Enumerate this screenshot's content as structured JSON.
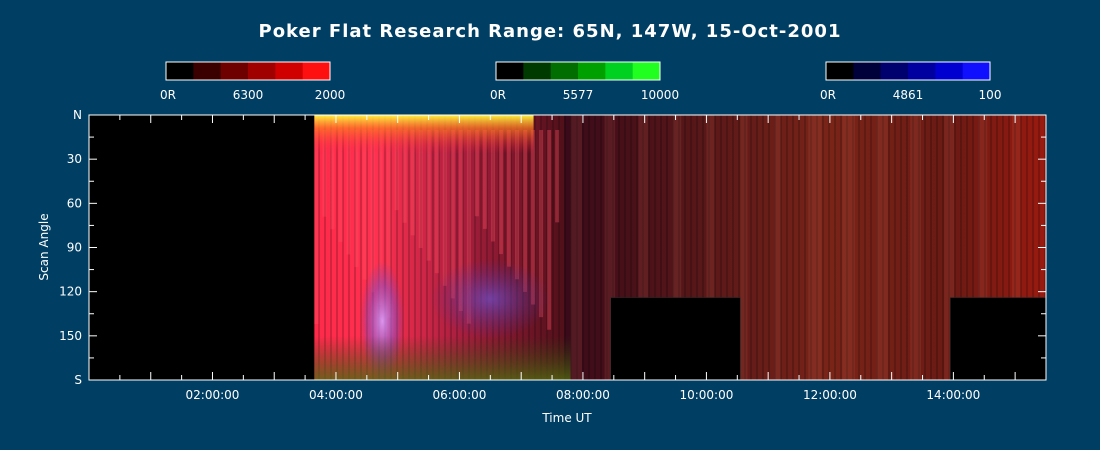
{
  "chart_data": {
    "type": "heatmap",
    "title": "Poker Flat Research Range: 65N, 147W, 15-Oct-2001",
    "xlabel": "Time UT",
    "ylabel": "Scan Angle",
    "xlim": [
      0.0,
      15.5
    ],
    "ylim": [
      0,
      180
    ],
    "x_ticks": [
      {
        "value": 2,
        "label": "02:00:00"
      },
      {
        "value": 4,
        "label": "04:00:00"
      },
      {
        "value": 6,
        "label": "06:00:00"
      },
      {
        "value": 8,
        "label": "08:00:00"
      },
      {
        "value": 10,
        "label": "10:00:00"
      },
      {
        "value": 12,
        "label": "12:00:00"
      },
      {
        "value": 14,
        "label": "14:00:00"
      }
    ],
    "y_ticks": [
      {
        "value": 0,
        "label": "N"
      },
      {
        "value": 30,
        "label": "30"
      },
      {
        "value": 60,
        "label": "60"
      },
      {
        "value": 90,
        "label": "90"
      },
      {
        "value": 120,
        "label": "120"
      },
      {
        "value": 150,
        "label": "150"
      },
      {
        "value": 180,
        "label": "S"
      }
    ],
    "colorbars": [
      {
        "channel": "red",
        "min_label": "0R",
        "mid_label": "6300",
        "max_label": "2000",
        "colors": [
          "#000000",
          "#3a0000",
          "#6e0000",
          "#a00000",
          "#d00000",
          "#ff1010"
        ]
      },
      {
        "channel": "green",
        "min_label": "0R",
        "mid_label": "5577",
        "max_label": "10000",
        "colors": [
          "#000000",
          "#003a00",
          "#006e00",
          "#00a000",
          "#00d020",
          "#20ff20"
        ]
      },
      {
        "channel": "blue",
        "min_label": "0R",
        "mid_label": "4861",
        "max_label": "100",
        "colors": [
          "#000000",
          "#00003a",
          "#00006e",
          "#0000a0",
          "#0000d0",
          "#1010ff"
        ]
      }
    ],
    "data_start_time": 3.65,
    "data_gaps": [
      {
        "start": 8.45,
        "end": 10.55,
        "from_angle": 124
      },
      {
        "start": 13.95,
        "end": 15.5,
        "from_angle": 124
      }
    ],
    "colors": {
      "background": "#003f63",
      "no_data": "#000000",
      "axis": "#ffffff"
    }
  }
}
